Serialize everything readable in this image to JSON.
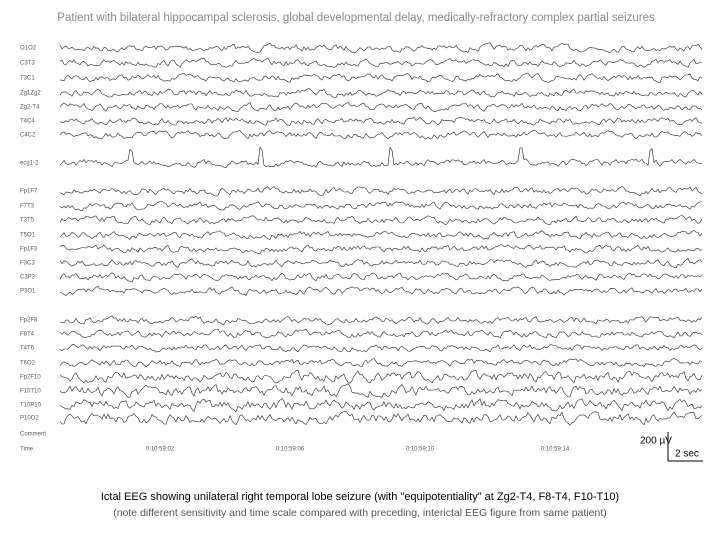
{
  "header": {
    "title": "Patient with bilateral hippocampal sclerosis, global developmental delay, medically-refractory complex partial seizures"
  },
  "channels": [
    "O1O2",
    "C3T3",
    "T3C1",
    "Zg1Zg2",
    "Zg2-T4",
    "T4C4",
    "C4C2",
    "ecg1-2",
    "Fp1F7",
    "F7T3",
    "T3T5",
    "T5O1",
    "Fp1F3",
    "F3C3",
    "C3P3",
    "P3O1",
    "Fp2F8",
    "F8T4",
    "T4T6",
    "T6O2",
    "Fp2F10",
    "F10T10",
    "T10P10",
    "P10O2"
  ],
  "footer_rows": [
    "Comment",
    "Time"
  ],
  "timestamps": [
    "0:10:59:02",
    "0:10:59:06",
    "0:10:59:10",
    "0:10:59:14"
  ],
  "scale_bar": {
    "amplitude": "200 µV",
    "time": "2 sec"
  },
  "caption": [
    "Ictal EEG showing unilateral right temporal lobe seizure (with \"equipotentiality\" at Zg2-T4, F8-T4, F10-T10)",
    "(note different sensitivity and time scale compared with preceding, interictal EEG figure from same patient)"
  ]
}
